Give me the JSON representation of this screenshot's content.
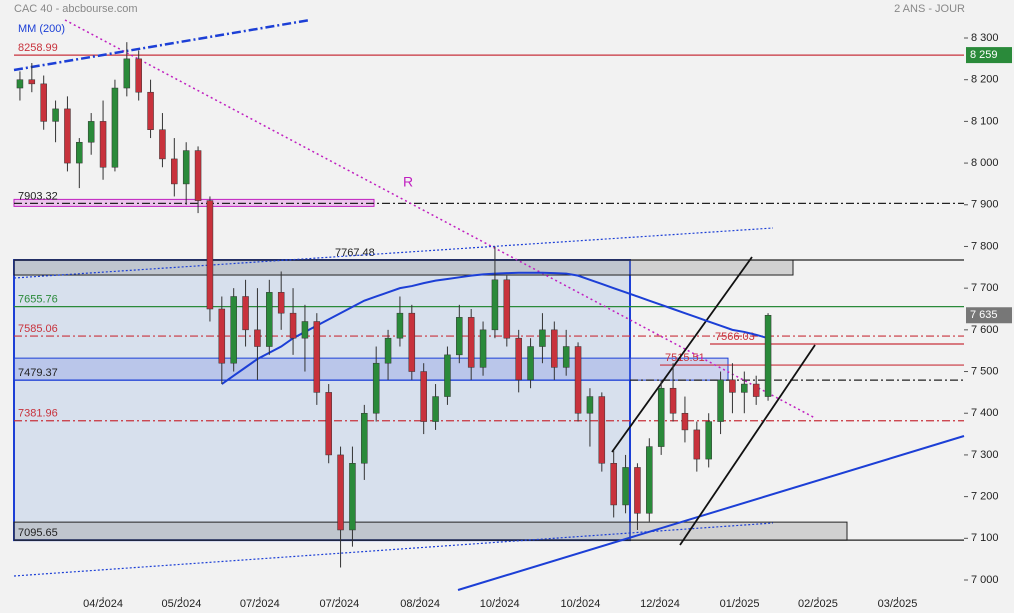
{
  "chart_data": {
    "type": "candlestick",
    "title": "CAC 40 - abcbourse.com",
    "subtitle": "2 ANS - JOUR",
    "ma_label": "MM (200)",
    "annotation": "R",
    "xlim": [
      -0.5,
      79.5
    ],
    "ylim": [
      7000,
      8300
    ],
    "xticks": [
      {
        "value": 7,
        "label": "04/2024"
      },
      {
        "value": 13.6,
        "label": "05/2024"
      },
      {
        "value": 20.2,
        "label": "07/2024"
      },
      {
        "value": 26.9,
        "label": "07/2024"
      },
      {
        "value": 33.7,
        "label": "08/2024"
      },
      {
        "value": 40.4,
        "label": "10/2024"
      },
      {
        "value": 47.2,
        "label": "10/2024"
      },
      {
        "value": 53.9,
        "label": "12/2024"
      },
      {
        "value": 60.6,
        "label": "01/2025"
      },
      {
        "value": 67.2,
        "label": "02/2025"
      },
      {
        "value": 73.9,
        "label": "03/2025"
      }
    ],
    "yticks": [
      {
        "value": 8300,
        "label": "8 300"
      },
      {
        "value": 8200,
        "label": "8 200"
      },
      {
        "value": 8100,
        "label": "8 100"
      },
      {
        "value": 8000,
        "label": "8 000"
      },
      {
        "value": 7900,
        "label": "7 900"
      },
      {
        "value": 7800,
        "label": "7 800"
      },
      {
        "value": 7700,
        "label": "7 700"
      },
      {
        "value": 7600,
        "label": "7 600"
      },
      {
        "value": 7500,
        "label": "7 500"
      },
      {
        "value": 7400,
        "label": "7 400"
      },
      {
        "value": 7300,
        "label": "7 300"
      },
      {
        "value": 7200,
        "label": "7 200"
      },
      {
        "value": 7100,
        "label": "7 100"
      },
      {
        "value": 7000,
        "label": "7 000"
      }
    ],
    "up_color": "#2a8a3a",
    "down_color": "#c8323c",
    "open": [
      8180,
      8200,
      8190,
      8100,
      8130,
      8000,
      8050,
      8100,
      7990,
      8180,
      8250,
      8170,
      8080,
      8010,
      7950,
      8030,
      7910,
      7650,
      7520,
      7680,
      7600,
      7560,
      7690,
      7640,
      7580,
      7620,
      7450,
      7300,
      7120,
      7280,
      7400,
      7520,
      7580,
      7640,
      7500,
      7380,
      7440,
      7540,
      7630,
      7510,
      7600,
      7720,
      7580,
      7480,
      7560,
      7600,
      7510,
      7560,
      7400,
      7440,
      7280,
      7180,
      7270,
      7160,
      7320,
      7460,
      7400,
      7360,
      7290,
      7380,
      7480,
      7450,
      7470,
      7440
    ],
    "high": [
      8220,
      8240,
      8210,
      8150,
      8160,
      8060,
      8120,
      8150,
      8200,
      8290,
      8270,
      8200,
      8120,
      8060,
      8050,
      8040,
      7920,
      7680,
      7700,
      7720,
      7700,
      7720,
      7740,
      7700,
      7660,
      7640,
      7470,
      7320,
      7320,
      7420,
      7560,
      7600,
      7680,
      7660,
      7520,
      7470,
      7560,
      7660,
      7650,
      7620,
      7800,
      7730,
      7600,
      7580,
      7640,
      7620,
      7600,
      7570,
      7460,
      7450,
      7310,
      7300,
      7280,
      7340,
      7480,
      7520,
      7440,
      7380,
      7400,
      7500,
      7520,
      7500,
      7490,
      7640
    ],
    "low": [
      8150,
      8170,
      8080,
      8050,
      7980,
      7940,
      8020,
      7960,
      7980,
      8160,
      8150,
      8060,
      7990,
      7920,
      7900,
      7880,
      7620,
      7470,
      7500,
      7560,
      7480,
      7540,
      7600,
      7540,
      7500,
      7420,
      7280,
      7030,
      7080,
      7240,
      7380,
      7480,
      7560,
      7480,
      7350,
      7360,
      7420,
      7520,
      7480,
      7490,
      7580,
      7560,
      7450,
      7460,
      7520,
      7480,
      7490,
      7380,
      7320,
      7260,
      7150,
      7160,
      7120,
      7140,
      7300,
      7380,
      7330,
      7260,
      7270,
      7350,
      7400,
      7400,
      7420,
      7430
    ],
    "close": [
      8200,
      8190,
      8100,
      8130,
      8000,
      8050,
      8100,
      7990,
      8180,
      8250,
      8170,
      8080,
      8010,
      7950,
      8030,
      7910,
      7650,
      7520,
      7680,
      7600,
      7560,
      7690,
      7640,
      7580,
      7620,
      7450,
      7300,
      7120,
      7280,
      7400,
      7520,
      7580,
      7640,
      7500,
      7380,
      7440,
      7540,
      7630,
      7510,
      7600,
      7720,
      7580,
      7480,
      7560,
      7600,
      7510,
      7560,
      7400,
      7440,
      7280,
      7180,
      7270,
      7160,
      7320,
      7460,
      7400,
      7360,
      7290,
      7380,
      7480,
      7450,
      7470,
      7440,
      7635
    ],
    "ma": [
      null,
      null,
      null,
      null,
      null,
      null,
      null,
      null,
      null,
      null,
      null,
      null,
      null,
      null,
      null,
      null,
      null,
      7470,
      7490,
      7510,
      7530,
      7545,
      7560,
      7580,
      7595,
      7610,
      7625,
      7640,
      7655,
      7670,
      7680,
      7690,
      7700,
      7705,
      7712,
      7718,
      7722,
      7726,
      7730,
      7733,
      7735,
      7736,
      7737,
      7737,
      7737,
      7736,
      7735,
      7730,
      7720,
      7710,
      7700,
      7690,
      7680,
      7670,
      7660,
      7650,
      7640,
      7630,
      7620,
      7610,
      7600,
      7595,
      7588,
      7580
    ],
    "ma_color": "#1c3fd6",
    "levels": [
      {
        "value": 8258.99,
        "color": "#c8323c",
        "dash": "none"
      },
      {
        "value": 7903.32,
        "color": "#222",
        "dash": "8 3 2 3"
      },
      {
        "value": 7767.48,
        "color": "#222",
        "dash": "none"
      },
      {
        "value": 7655.76,
        "color": "#2a8a3a",
        "dash": "none"
      },
      {
        "value": 7585.06,
        "color": "#c8323c",
        "dash": "8 3 2 3"
      },
      {
        "value": 7566.03,
        "color": "#c8323c",
        "dash": "none"
      },
      {
        "value": 7515.51,
        "color": "#c8323c",
        "dash": "none"
      },
      {
        "value": 7479.37,
        "color": "#222",
        "dash": "8 3 2 3"
      },
      {
        "value": 7381.96,
        "color": "#c8323c",
        "dash": "8 3 2 3"
      },
      {
        "value": 7095.65,
        "color": "#222",
        "dash": "none"
      }
    ],
    "price_badges": [
      {
        "value": 8259,
        "label": "8 259",
        "color": "#2a8a3a"
      },
      {
        "value": 7635,
        "label": "7 635",
        "color": "#777777"
      }
    ]
  }
}
